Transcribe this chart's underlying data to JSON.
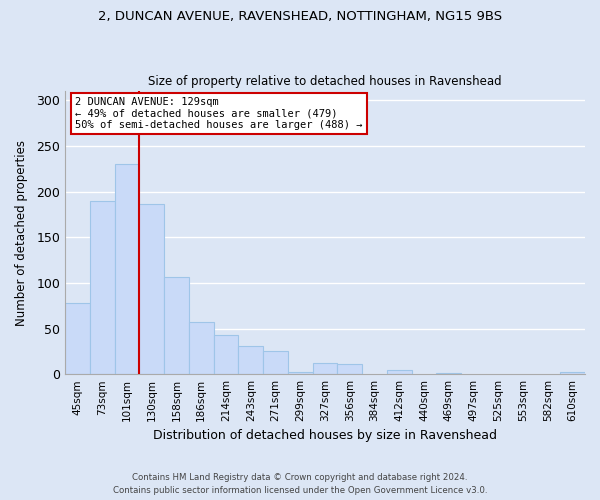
{
  "title": "2, DUNCAN AVENUE, RAVENSHEAD, NOTTINGHAM, NG15 9BS",
  "subtitle": "Size of property relative to detached houses in Ravenshead",
  "xlabel": "Distribution of detached houses by size in Ravenshead",
  "ylabel": "Number of detached properties",
  "bar_labels": [
    "45sqm",
    "73sqm",
    "101sqm",
    "130sqm",
    "158sqm",
    "186sqm",
    "214sqm",
    "243sqm",
    "271sqm",
    "299sqm",
    "327sqm",
    "356sqm",
    "384sqm",
    "412sqm",
    "440sqm",
    "469sqm",
    "497sqm",
    "525sqm",
    "553sqm",
    "582sqm",
    "610sqm"
  ],
  "bar_values": [
    78,
    190,
    230,
    186,
    106,
    57,
    43,
    31,
    25,
    2,
    12,
    11,
    0,
    5,
    0,
    1,
    0,
    0,
    0,
    0,
    2
  ],
  "bar_color": "#c9daf8",
  "bar_edge_color": "#9fc5e8",
  "vline_color": "#cc0000",
  "ylim": [
    0,
    310
  ],
  "yticks": [
    0,
    50,
    100,
    150,
    200,
    250,
    300
  ],
  "annotation_text": "2 DUNCAN AVENUE: 129sqm\n← 49% of detached houses are smaller (479)\n50% of semi-detached houses are larger (488) →",
  "annotation_box_color": "#ffffff",
  "annotation_box_edge": "#cc0000",
  "footer_line1": "Contains HM Land Registry data © Crown copyright and database right 2024.",
  "footer_line2": "Contains public sector information licensed under the Open Government Licence v3.0.",
  "bg_color": "#dce6f5",
  "grid_color": "#ffffff",
  "plot_bg_color": "#dce6f5"
}
